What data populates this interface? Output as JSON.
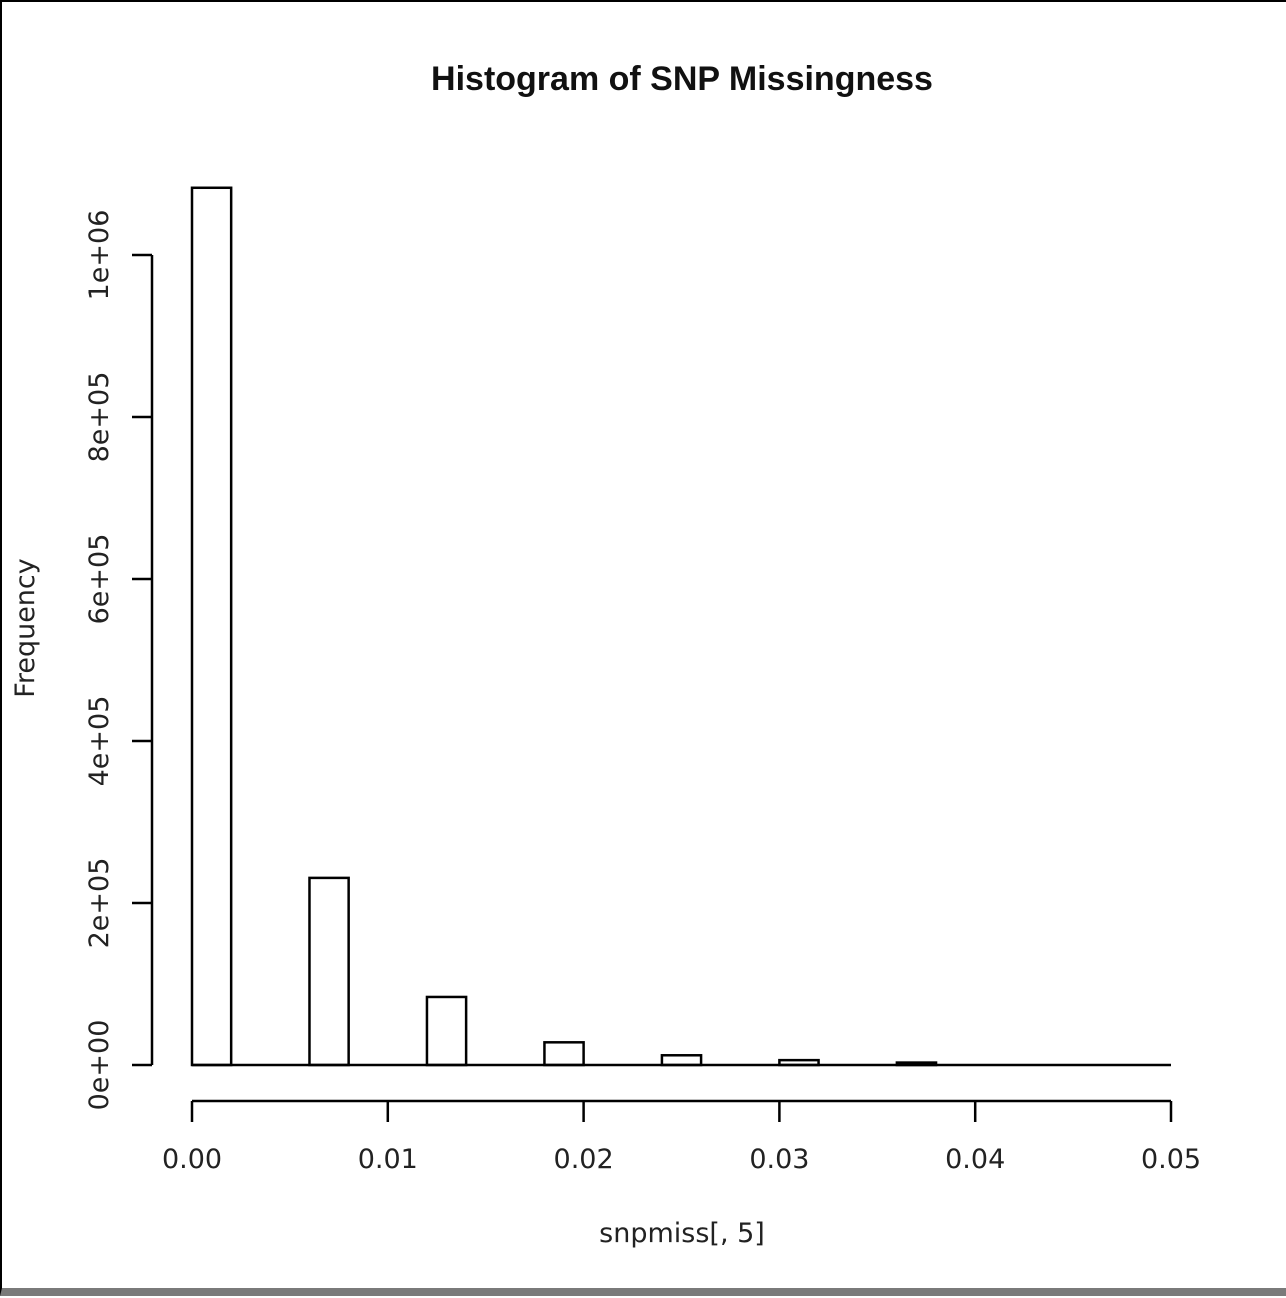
{
  "chart_data": {
    "type": "bar",
    "title": "Histogram of SNP Missingness",
    "xlabel": "snpmiss[, 5]",
    "ylabel": "Frequency",
    "xlim": [
      0,
      0.05
    ],
    "ylim": [
      0,
      1000000
    ],
    "x_ticks": [
      "0.00",
      "0.01",
      "0.02",
      "0.03",
      "0.04",
      "0.05"
    ],
    "x_tick_values": [
      0,
      0.01,
      0.02,
      0.03,
      0.04,
      0.05
    ],
    "y_ticks": [
      "0e+00",
      "2e+05",
      "4e+05",
      "6e+05",
      "8e+05",
      "1e+06"
    ],
    "y_tick_values": [
      0,
      200000,
      400000,
      600000,
      800000,
      1000000
    ],
    "bins": [
      {
        "x0": 0.0,
        "x1": 0.002,
        "count": 1083000
      },
      {
        "x0": 0.002,
        "x1": 0.006,
        "count": 0
      },
      {
        "x0": 0.006,
        "x1": 0.008,
        "count": 231000
      },
      {
        "x0": 0.008,
        "x1": 0.012,
        "count": 0
      },
      {
        "x0": 0.012,
        "x1": 0.014,
        "count": 84000
      },
      {
        "x0": 0.014,
        "x1": 0.018,
        "count": 0
      },
      {
        "x0": 0.018,
        "x1": 0.02,
        "count": 28000
      },
      {
        "x0": 0.02,
        "x1": 0.024,
        "count": 0
      },
      {
        "x0": 0.024,
        "x1": 0.026,
        "count": 12000
      },
      {
        "x0": 0.026,
        "x1": 0.03,
        "count": 0
      },
      {
        "x0": 0.03,
        "x1": 0.032,
        "count": 6000
      },
      {
        "x0": 0.032,
        "x1": 0.036,
        "count": 0
      },
      {
        "x0": 0.036,
        "x1": 0.038,
        "count": 3000
      },
      {
        "x0": 0.038,
        "x1": 0.05,
        "count": 0
      }
    ],
    "grid": false,
    "bar_fill": "#ffffff",
    "bar_stroke": "#000000"
  }
}
